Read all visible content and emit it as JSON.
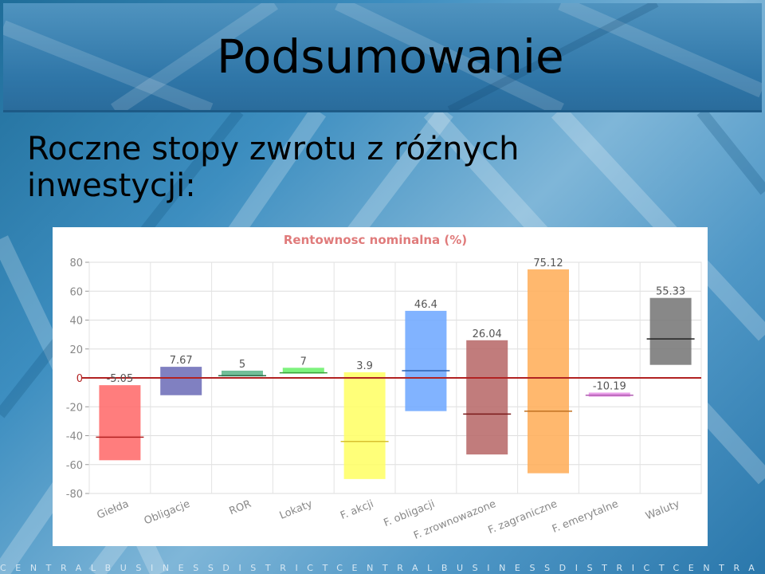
{
  "slide": {
    "title": "Podsumowanie",
    "subtitle_line1": "Roczne stopy zwrotu z różnych",
    "subtitle_line2": "inwestycji:",
    "footer": "CENTRALBUSINESSDISTRICTCENTRALBUSINESSDISTRICTCENTRA"
  },
  "colors": {
    "zero_line": "#b22222",
    "title_text": "#e07b7b",
    "axis_text": "#888888"
  },
  "chart_data": {
    "type": "bar",
    "title": "Rentownosc nominalna (%)",
    "ylim": [
      -80,
      80
    ],
    "yticks": [
      80,
      60,
      40,
      20,
      0,
      -20,
      -40,
      -60,
      -80
    ],
    "grid": true,
    "legend": "none",
    "categories": [
      "Giełda",
      "Obligacje",
      "ROR",
      "Lokaty",
      "F. akcji",
      "F. obligacji",
      "F. zrownowazone",
      "F. zagraniczne",
      "F. emerytalne",
      "Waluty"
    ],
    "bars": [
      {
        "label": "-5.05",
        "low": -57,
        "high": -5.05,
        "marker": -41,
        "color": "#ff6b6b",
        "marker_color": "#b22222"
      },
      {
        "label": "7.67",
        "low": -12,
        "high": 7.67,
        "marker": 0,
        "color": "#6e6eb8",
        "marker_color": "#3a3a80"
      },
      {
        "label": "5",
        "low": 1,
        "high": 5,
        "marker": 1.5,
        "color": "#5fb58a",
        "marker_color": "#2e6e4a"
      },
      {
        "label": "7",
        "low": 3,
        "high": 7,
        "marker": 3.5,
        "color": "#6cf06c",
        "marker_color": "#3aa23a"
      },
      {
        "label": "3.9",
        "low": -70,
        "high": 3.9,
        "marker": -44,
        "color": "#ffff66",
        "marker_color": "#d8c030"
      },
      {
        "label": "46.4",
        "low": -23,
        "high": 46.4,
        "marker": 5,
        "color": "#6fa8ff",
        "marker_color": "#2a5fb0"
      },
      {
        "label": "26.04",
        "low": -53,
        "high": 26.04,
        "marker": -25,
        "color": "#b86a6a",
        "marker_color": "#7a1a1a"
      },
      {
        "label": "75.12",
        "low": -66,
        "high": 75.12,
        "marker": -23,
        "color": "#ffae5a",
        "marker_color": "#c07020"
      },
      {
        "label": "-10.19",
        "low": -13,
        "high": -10.19,
        "marker": -12,
        "color": "#e58fe5",
        "marker_color": "#b05ab0"
      },
      {
        "label": "55.33",
        "low": 9,
        "high": 55.33,
        "marker": 27,
        "color": "#787878",
        "marker_color": "#202020"
      }
    ]
  }
}
